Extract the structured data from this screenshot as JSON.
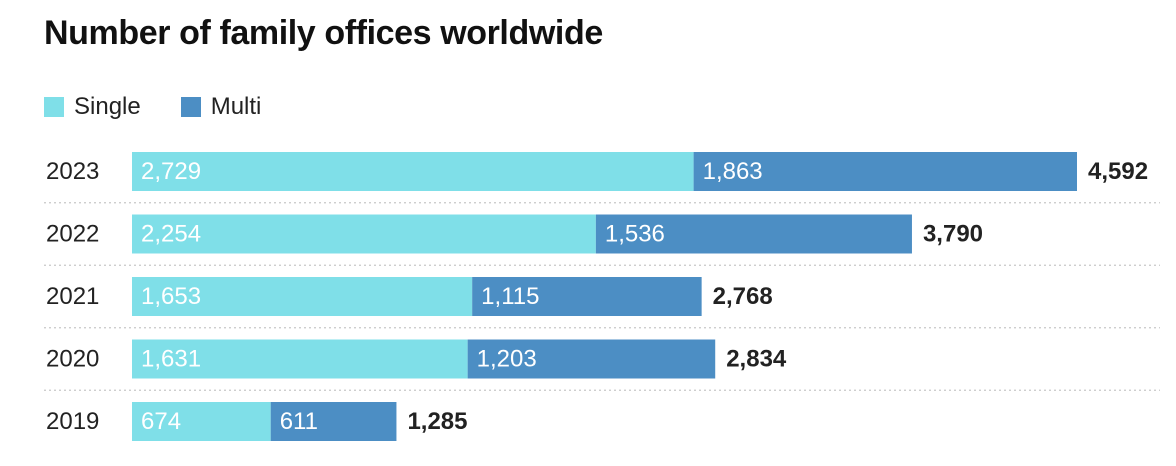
{
  "chart_data": {
    "type": "bar",
    "orientation": "horizontal",
    "stacked": true,
    "title": "Number of family offices worldwide",
    "categories": [
      "2023",
      "2022",
      "2021",
      "2020",
      "2019"
    ],
    "series": [
      {
        "name": "Single",
        "color": "#7fdfe8",
        "values": [
          2729,
          2254,
          1653,
          1631,
          674
        ]
      },
      {
        "name": "Multi",
        "color": "#4c8ec4",
        "values": [
          1863,
          1536,
          1115,
          1203,
          611
        ]
      }
    ],
    "segment_labels": [
      [
        "2,729",
        "2,254",
        "1,653",
        "1,631",
        "674"
      ],
      [
        "1,863",
        "1,536",
        "1,115",
        "1,203",
        "611"
      ]
    ],
    "totals": [
      4592,
      3790,
      2768,
      2834,
      1285
    ],
    "total_labels": [
      "4,592",
      "3,790",
      "2,768",
      "2,834",
      "1,285"
    ],
    "legend_position": "top-left",
    "grid": false,
    "row_separators": true,
    "xlim": [
      0,
      4592
    ]
  }
}
